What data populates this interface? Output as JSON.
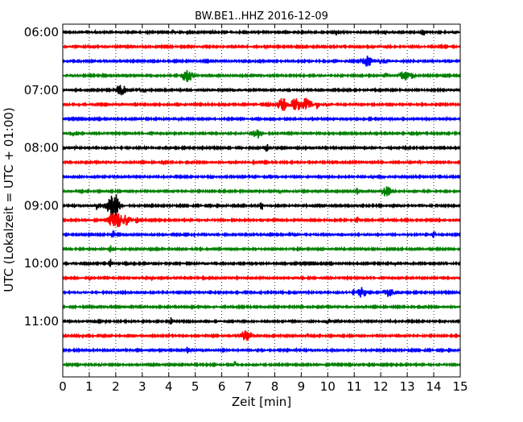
{
  "chart_data": {
    "type": "line",
    "title": "BW.BE1..HHZ 2016-12-09",
    "xlabel": "Zeit  [min]",
    "ylabel": "UTC (Lokalzeit = UTC + 01:00)",
    "xlim": [
      0,
      15
    ],
    "x_ticks": [
      0,
      1,
      2,
      3,
      4,
      5,
      6,
      7,
      8,
      9,
      10,
      11,
      12,
      13,
      14,
      15
    ],
    "x_tick_labels": [
      "0",
      "1",
      "2",
      "3",
      "4",
      "5",
      "6",
      "7",
      "8",
      "9",
      "10",
      "11",
      "12",
      "13",
      "14",
      "15"
    ],
    "y_tick_labels": [
      "06:00",
      "07:00",
      "08:00",
      "09:00",
      "10:00",
      "11:00"
    ],
    "grid": "vertical dotted",
    "trace_interval_min": 15,
    "trace_colors": [
      "#000000",
      "#ff0000",
      "#0000ff",
      "#008000"
    ],
    "series": [
      {
        "start": "06:00",
        "color": "#000000",
        "events": [
          [
            0.5,
            0.15
          ],
          [
            1.2,
            0.25
          ],
          [
            2.1,
            0.2
          ],
          [
            3.2,
            0.2
          ],
          [
            4.2,
            0.35
          ],
          [
            4.7,
            0.5
          ],
          [
            5.7,
            0.3
          ],
          [
            6.3,
            0.2
          ],
          [
            7.8,
            0.15
          ],
          [
            9.3,
            0.2
          ],
          [
            10.3,
            0.7
          ],
          [
            11.3,
            0.25
          ],
          [
            12.2,
            0.2
          ],
          [
            13.6,
            0.75
          ],
          [
            14.5,
            0.2
          ]
        ]
      },
      {
        "start": "06:15",
        "color": "#ff0000",
        "events": [
          [
            1.2,
            0.2
          ],
          [
            4.8,
            0.35
          ],
          [
            7.7,
            0.25
          ],
          [
            9.2,
            0.2
          ],
          [
            11.7,
            0.45
          ],
          [
            12.2,
            0.5
          ],
          [
            14.3,
            0.25
          ]
        ]
      },
      {
        "start": "06:30",
        "color": "#0000ff",
        "events": [
          [
            0.7,
            0.2
          ],
          [
            2.2,
            0.25
          ],
          [
            3.8,
            0.2
          ],
          [
            4.8,
            0.3
          ],
          [
            7.5,
            0.3
          ],
          [
            8.5,
            0.3
          ],
          [
            9.8,
            0.2
          ],
          [
            10.8,
            0.3
          ],
          [
            11.5,
            1.0
          ],
          [
            12.0,
            0.6
          ],
          [
            12.2,
            0.6
          ],
          [
            14.0,
            0.35
          ]
        ]
      },
      {
        "start": "06:45",
        "color": "#008000",
        "events": [
          [
            1.5,
            0.2
          ],
          [
            4.7,
            1.3
          ],
          [
            7.3,
            0.25
          ],
          [
            12.2,
            0.6
          ],
          [
            12.9,
            1.0
          ],
          [
            13.2,
            0.8
          ],
          [
            13.8,
            0.3
          ]
        ]
      },
      {
        "start": "07:00",
        "color": "#000000",
        "events": [
          [
            1.3,
            0.4
          ],
          [
            2.2,
            1.0
          ],
          [
            2.1,
            0.9
          ],
          [
            2.6,
            0.4
          ],
          [
            2.9,
            0.7
          ],
          [
            3.1,
            0.4
          ]
        ]
      },
      {
        "start": "07:15",
        "color": "#ff0000",
        "events": [
          [
            0.6,
            0.2
          ],
          [
            5.5,
            0.25
          ],
          [
            7.8,
            0.9
          ],
          [
            8.3,
            1.2
          ],
          [
            8.8,
            1.3
          ],
          [
            9.2,
            1.2
          ],
          [
            9.6,
            0.9
          ],
          [
            10.0,
            0.6
          ]
        ]
      },
      {
        "start": "07:30",
        "color": "#0000ff",
        "events": [
          [
            1.6,
            0.25
          ],
          [
            3.0,
            0.25
          ],
          [
            4.4,
            0.3
          ],
          [
            7.4,
            0.25
          ],
          [
            9.8,
            0.25
          ],
          [
            12.4,
            0.3
          ],
          [
            14.5,
            0.3
          ]
        ]
      },
      {
        "start": "07:45",
        "color": "#008000",
        "events": [
          [
            0.4,
            0.7
          ],
          [
            2.6,
            0.25
          ],
          [
            7.3,
            1.1
          ],
          [
            10.5,
            0.25
          ],
          [
            11.6,
            0.3
          ],
          [
            13.4,
            0.3
          ]
        ]
      },
      {
        "start": "08:00",
        "color": "#000000",
        "events": [
          [
            0.5,
            0.3
          ],
          [
            3.1,
            0.25
          ],
          [
            6.8,
            0.3
          ],
          [
            7.7,
            0.8
          ],
          [
            9.2,
            0.25
          ],
          [
            11.0,
            0.25
          ],
          [
            13.0,
            0.3
          ]
        ]
      },
      {
        "start": "08:15",
        "color": "#ff0000",
        "events": [
          [
            3.8,
            0.25
          ],
          [
            7.2,
            0.25
          ],
          [
            10.1,
            0.25
          ],
          [
            11.9,
            0.3
          ],
          [
            13.5,
            0.35
          ],
          [
            14.1,
            0.3
          ]
        ]
      },
      {
        "start": "08:30",
        "color": "#0000ff",
        "events": [
          [
            0.4,
            0.3
          ],
          [
            1.9,
            0.35
          ],
          [
            5.6,
            0.25
          ],
          [
            7.4,
            0.25
          ],
          [
            9.8,
            0.25
          ],
          [
            11.7,
            0.35
          ],
          [
            12.1,
            0.3
          ],
          [
            13.3,
            0.3
          ]
        ]
      },
      {
        "start": "08:45",
        "color": "#008000",
        "events": [
          [
            0.7,
            0.2
          ],
          [
            2.8,
            0.25
          ],
          [
            8.2,
            0.3
          ],
          [
            9.4,
            0.25
          ],
          [
            11.1,
            0.7
          ],
          [
            12.2,
            1.0
          ],
          [
            12.5,
            0.5
          ]
        ]
      },
      {
        "start": "09:00",
        "color": "#000000",
        "events": [
          [
            1.3,
            0.9
          ],
          [
            1.6,
            0.5
          ],
          [
            1.9,
            3.0
          ],
          [
            2.2,
            0.5
          ],
          [
            7.5,
            0.9
          ],
          [
            9.2,
            0.25
          ],
          [
            12.4,
            0.3
          ]
        ]
      },
      {
        "start": "09:15",
        "color": "#ff0000",
        "events": [
          [
            1.9,
            1.4
          ],
          [
            2.1,
            1.3
          ],
          [
            2.4,
            1.0
          ],
          [
            2.8,
            0.6
          ],
          [
            3.1,
            0.35
          ],
          [
            11.1,
            0.8
          ],
          [
            11.5,
            0.5
          ]
        ]
      },
      {
        "start": "09:30",
        "color": "#0000ff",
        "events": [
          [
            1.9,
            0.8
          ],
          [
            3.3,
            0.3
          ],
          [
            5.0,
            0.25
          ],
          [
            8.6,
            0.45
          ],
          [
            9.2,
            0.3
          ],
          [
            10.4,
            0.3
          ],
          [
            14.0,
            0.65
          ]
        ]
      },
      {
        "start": "09:45",
        "color": "#008000",
        "events": [
          [
            1.8,
            0.8
          ],
          [
            4.0,
            0.35
          ],
          [
            7.2,
            0.25
          ],
          [
            10.5,
            0.25
          ],
          [
            14.6,
            0.35
          ]
        ]
      },
      {
        "start": "10:00",
        "color": "#000000",
        "events": [
          [
            1.8,
            0.9
          ],
          [
            3.5,
            0.3
          ],
          [
            5.0,
            0.3
          ],
          [
            6.0,
            0.35
          ],
          [
            8.8,
            0.25
          ],
          [
            12.5,
            0.3
          ],
          [
            14.4,
            0.25
          ]
        ]
      },
      {
        "start": "10:15",
        "color": "#ff0000",
        "events": [
          [
            1.0,
            0.25
          ],
          [
            3.4,
            0.35
          ],
          [
            5.4,
            0.25
          ],
          [
            8.7,
            0.25
          ],
          [
            12.1,
            0.3
          ],
          [
            13.5,
            0.25
          ]
        ]
      },
      {
        "start": "10:30",
        "color": "#0000ff",
        "events": [
          [
            0.6,
            0.2
          ],
          [
            11.0,
            0.7
          ],
          [
            11.3,
            1.0
          ],
          [
            12.3,
            1.0
          ],
          [
            12.6,
            0.4
          ]
        ]
      },
      {
        "start": "10:45",
        "color": "#008000",
        "events": [
          [
            1.0,
            0.2
          ],
          [
            4.9,
            0.35
          ],
          [
            9.0,
            0.25
          ],
          [
            11.3,
            0.35
          ],
          [
            13.3,
            0.25
          ]
        ]
      },
      {
        "start": "11:00",
        "color": "#000000",
        "events": [
          [
            1.6,
            0.2
          ],
          [
            4.1,
            0.8
          ],
          [
            6.2,
            0.25
          ],
          [
            10.0,
            0.5
          ],
          [
            10.4,
            0.35
          ],
          [
            12.4,
            0.2
          ]
        ]
      },
      {
        "start": "11:15",
        "color": "#ff0000",
        "events": [
          [
            0.6,
            0.3
          ],
          [
            4.0,
            0.35
          ],
          [
            6.9,
            1.0
          ],
          [
            7.1,
            0.8
          ],
          [
            9.2,
            0.4
          ],
          [
            12.1,
            0.2
          ]
        ]
      },
      {
        "start": "11:30",
        "color": "#0000ff",
        "events": [
          [
            0.6,
            0.25
          ],
          [
            2.4,
            0.45
          ],
          [
            4.7,
            0.8
          ],
          [
            4.9,
            0.5
          ],
          [
            8.4,
            0.8
          ],
          [
            8.8,
            0.35
          ],
          [
            12.0,
            0.25
          ]
        ]
      },
      {
        "start": "11:45",
        "color": "#008000",
        "events": [
          [
            1.4,
            0.7
          ],
          [
            6.5,
            0.7
          ],
          [
            10.2,
            0.4
          ],
          [
            13.0,
            0.25
          ]
        ]
      }
    ]
  }
}
